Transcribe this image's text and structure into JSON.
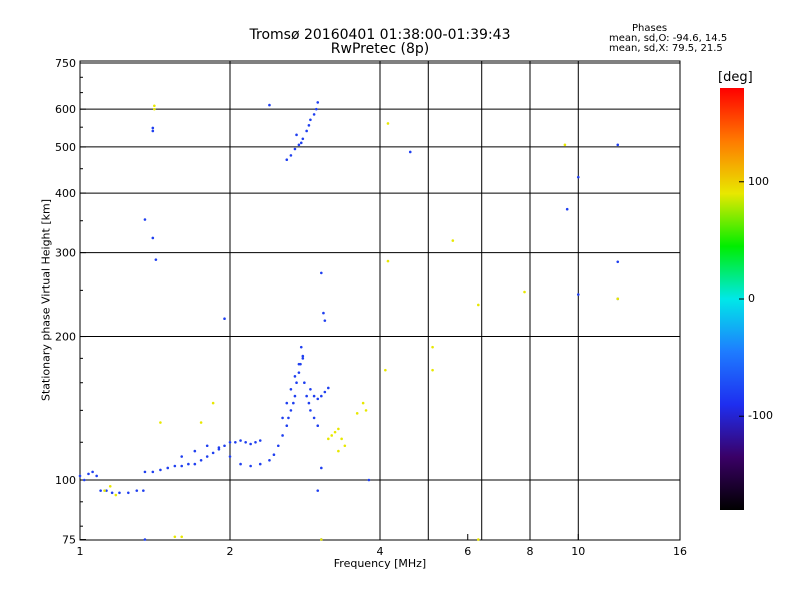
{
  "title": {
    "line1": "Tromsø 20160401 01:38:00-01:39:43",
    "line2": "RwPretec (8p)"
  },
  "phases_box": {
    "title": "Phases",
    "line1": "mean, sd,O: -94.6, 14.5",
    "line2": "mean, sd,X:  79.5, 21.5"
  },
  "colorbar": {
    "title": "[deg]",
    "ticks": [
      {
        "value": 100,
        "label": "100"
      },
      {
        "value": 0,
        "label": "0"
      },
      {
        "value": -100,
        "label": "-100"
      }
    ],
    "range": [
      -180,
      180
    ],
    "colors": [
      "#000000",
      "#3a0066",
      "#1e2ef0",
      "#1e7cff",
      "#00e8e8",
      "#00ee00",
      "#e8e800",
      "#ff7a00",
      "#ff0000"
    ]
  },
  "chart_data": {
    "type": "scatter",
    "xlabel": "Frequency [MHz]",
    "ylabel": "Stationary phase Virtual Height [km]",
    "xscale": "log2",
    "yscale": "log",
    "xlim": [
      1,
      16
    ],
    "ylim": [
      72,
      750
    ],
    "x_ticks": [
      1,
      2,
      4,
      6,
      8,
      10,
      16
    ],
    "y_ticks": [
      75,
      100,
      200,
      300,
      400,
      500,
      600,
      750
    ],
    "grid": true,
    "grid_x": [
      2,
      4,
      5,
      6.4,
      8,
      10,
      16
    ],
    "grid_y": [
      100,
      200,
      300,
      400,
      500,
      600,
      750
    ],
    "colors": {
      "o_mode": "#1f3ff0",
      "x_mode": "#e8e800"
    },
    "series": [
      {
        "values": [
          [
            1.0,
            102
          ],
          [
            1.02,
            100
          ],
          [
            1.04,
            103
          ],
          [
            1.06,
            104
          ],
          [
            1.08,
            102
          ],
          [
            1.1,
            95
          ],
          [
            1.13,
            95
          ],
          [
            1.16,
            94
          ],
          [
            1.2,
            94
          ],
          [
            1.25,
            94
          ],
          [
            1.3,
            95
          ],
          [
            1.34,
            95
          ],
          [
            1.35,
            104
          ],
          [
            1.4,
            104
          ],
          [
            1.45,
            105
          ],
          [
            1.5,
            106
          ],
          [
            1.55,
            107
          ],
          [
            1.6,
            107
          ],
          [
            1.65,
            108
          ],
          [
            1.7,
            108
          ],
          [
            1.75,
            110
          ],
          [
            1.8,
            112
          ],
          [
            1.85,
            114
          ],
          [
            1.9,
            116
          ],
          [
            1.95,
            118
          ],
          [
            2.0,
            120
          ],
          [
            2.05,
            120
          ],
          [
            2.1,
            121
          ],
          [
            2.15,
            120
          ],
          [
            2.2,
            119
          ],
          [
            2.25,
            120
          ],
          [
            2.3,
            121
          ],
          [
            1.6,
            112
          ],
          [
            1.7,
            115
          ],
          [
            1.8,
            118
          ],
          [
            1.9,
            117
          ],
          [
            2.0,
            112
          ],
          [
            2.1,
            108
          ],
          [
            2.2,
            107
          ],
          [
            2.3,
            108
          ],
          [
            2.4,
            110
          ],
          [
            2.45,
            113
          ],
          [
            2.5,
            118
          ],
          [
            2.55,
            124
          ],
          [
            2.6,
            130
          ],
          [
            2.62,
            135
          ],
          [
            2.65,
            140
          ],
          [
            2.68,
            145
          ],
          [
            2.7,
            150
          ],
          [
            2.72,
            160
          ],
          [
            2.75,
            168
          ],
          [
            2.77,
            175
          ],
          [
            2.8,
            182
          ],
          [
            2.78,
            190
          ],
          [
            2.82,
            160
          ],
          [
            2.85,
            150
          ],
          [
            2.88,
            145
          ],
          [
            2.9,
            140
          ],
          [
            2.95,
            135
          ],
          [
            3.0,
            130
          ],
          [
            2.55,
            135
          ],
          [
            2.6,
            145
          ],
          [
            2.65,
            155
          ],
          [
            2.7,
            165
          ],
          [
            2.75,
            175
          ],
          [
            2.8,
            180
          ],
          [
            2.9,
            155
          ],
          [
            2.95,
            150
          ],
          [
            3.0,
            148
          ],
          [
            3.05,
            150
          ],
          [
            3.1,
            153
          ],
          [
            3.15,
            156
          ],
          [
            2.6,
            470
          ],
          [
            2.65,
            480
          ],
          [
            2.7,
            495
          ],
          [
            2.75,
            505
          ],
          [
            2.8,
            520
          ],
          [
            2.85,
            540
          ],
          [
            2.88,
            555
          ],
          [
            2.9,
            570
          ],
          [
            2.95,
            585
          ],
          [
            2.98,
            600
          ],
          [
            3.0,
            620
          ],
          [
            2.72,
            530
          ],
          [
            2.78,
            510
          ],
          [
            1.4,
            548
          ],
          [
            1.4,
            540
          ],
          [
            1.35,
            352
          ],
          [
            1.4,
            322
          ],
          [
            1.42,
            290
          ],
          [
            1.95,
            218
          ],
          [
            2.4,
            612
          ],
          [
            3.05,
            272
          ],
          [
            3.08,
            224
          ],
          [
            3.1,
            216
          ],
          [
            3.05,
            106
          ],
          [
            3.0,
            95
          ],
          [
            3.8,
            100
          ],
          [
            4.6,
            488
          ],
          [
            9.5,
            370
          ],
          [
            10.0,
            432
          ],
          [
            12.0,
            505
          ],
          [
            10.0,
            245
          ],
          [
            12.0,
            287
          ],
          [
            12.0,
            240
          ],
          [
            1.35,
            75
          ],
          [
            3.05,
            75
          ]
        ]
      },
      {
        "values": [
          [
            1.12,
            95
          ],
          [
            1.15,
            97
          ],
          [
            1.18,
            93
          ],
          [
            1.41,
            610
          ],
          [
            1.41,
            600
          ],
          [
            1.45,
            132
          ],
          [
            1.55,
            76
          ],
          [
            1.6,
            76
          ],
          [
            1.75,
            132
          ],
          [
            1.85,
            145
          ],
          [
            3.15,
            122
          ],
          [
            3.2,
            124
          ],
          [
            3.25,
            126
          ],
          [
            3.3,
            128
          ],
          [
            3.35,
            122
          ],
          [
            3.4,
            118
          ],
          [
            3.3,
            115
          ],
          [
            3.6,
            138
          ],
          [
            3.7,
            145
          ],
          [
            3.75,
            140
          ],
          [
            4.15,
            560
          ],
          [
            4.15,
            288
          ],
          [
            5.1,
            170
          ],
          [
            5.6,
            318
          ],
          [
            6.3,
            233
          ],
          [
            6.3,
            75
          ],
          [
            7.8,
            248
          ],
          [
            9.4,
            505
          ],
          [
            12.0,
            240
          ],
          [
            4.1,
            170
          ],
          [
            5.1,
            190
          ],
          [
            3.05,
            75
          ]
        ]
      }
    ]
  }
}
